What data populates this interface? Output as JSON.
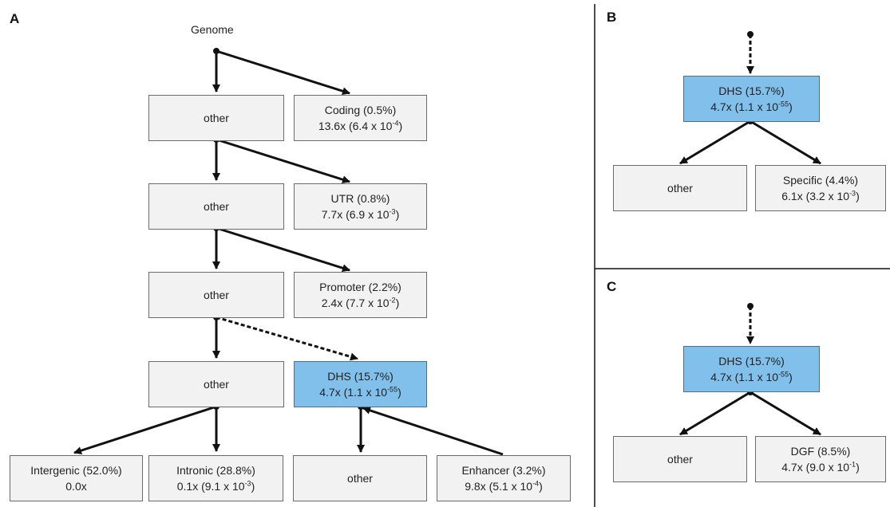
{
  "panels": {
    "a": "A",
    "b": "B",
    "c": "C"
  },
  "root_label": "Genome",
  "a": {
    "other_label": "other",
    "coding": {
      "name": "Coding (0.5%)",
      "stat": "13.6x (6.4 x 10",
      "exp": "-4",
      "close": ")"
    },
    "utr": {
      "name": "UTR (0.8%)",
      "stat": "7.7x (6.9 x 10",
      "exp": "-3",
      "close": ")"
    },
    "promoter": {
      "name": "Promoter (2.2%)",
      "stat": "2.4x (7.7 x 10",
      "exp": "-2",
      "close": ")"
    },
    "dhs": {
      "name": "DHS (15.7%)",
      "stat": "4.7x (1.1 x 10",
      "exp": "-55",
      "close": ")"
    },
    "intergenic": {
      "name": "Intergenic (52.0%)",
      "stat": "0.0x"
    },
    "intronic": {
      "name": "Intronic (28.8%)",
      "stat": "0.1x (9.1 x 10",
      "exp": "-3",
      "close": ")"
    },
    "enhancer": {
      "name": "Enhancer (3.2%)",
      "stat": "9.8x (5.1 x 10",
      "exp": "-4",
      "close": ")"
    }
  },
  "b": {
    "dhs": {
      "name": "DHS (15.7%)",
      "stat": "4.7x (1.1 x 10",
      "exp": "-55",
      "close": ")"
    },
    "other_label": "other",
    "specific": {
      "name": "Specific (4.4%)",
      "stat": "6.1x (3.2 x 10",
      "exp": "-3",
      "close": ")"
    }
  },
  "c": {
    "dhs": {
      "name": "DHS (15.7%)",
      "stat": "4.7x (1.1 x 10",
      "exp": "-55",
      "close": ")"
    },
    "other_label": "other",
    "dgf": {
      "name": "DGF (8.5%)",
      "stat": "4.7x (9.0 x 10",
      "exp": "-1",
      "close": ")"
    }
  },
  "colors": {
    "highlight": "#82c0ec",
    "box_fill": "#f2f2f2",
    "edge": "#111111"
  }
}
